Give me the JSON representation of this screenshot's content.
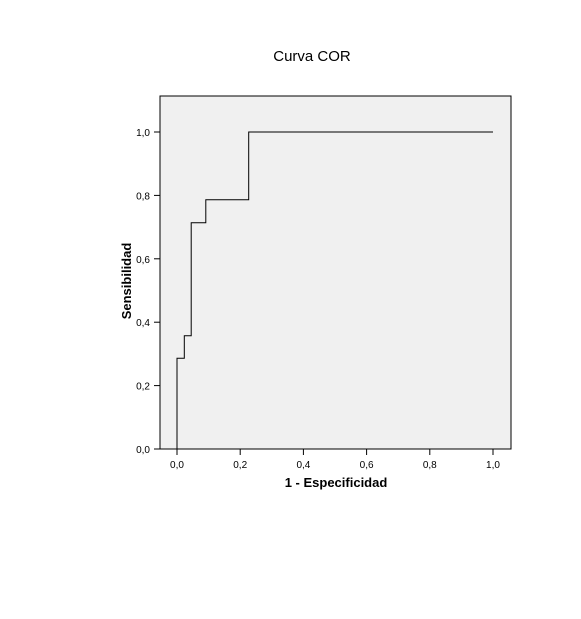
{
  "chart_data": {
    "type": "line",
    "title": "Curva COR",
    "xlabel": "1 - Especificidad",
    "ylabel": "Sensibilidad",
    "xlim": [
      0,
      1
    ],
    "ylim": [
      0,
      1
    ],
    "x_ticks": [
      "0,0",
      "0,2",
      "0,4",
      "0,6",
      "0,8",
      "1,0"
    ],
    "y_ticks": [
      "0,0",
      "0,2",
      "0,4",
      "0,6",
      "0,8",
      "1,0"
    ],
    "grid": false,
    "series": [
      {
        "step": true,
        "points": [
          [
            0.0,
            0.0
          ],
          [
            0.0,
            0.286
          ],
          [
            0.023,
            0.286
          ],
          [
            0.023,
            0.357
          ],
          [
            0.045,
            0.357
          ],
          [
            0.045,
            0.714
          ],
          [
            0.091,
            0.714
          ],
          [
            0.091,
            0.786
          ],
          [
            0.227,
            0.786
          ],
          [
            0.227,
            1.0
          ],
          [
            1.0,
            1.0
          ]
        ]
      }
    ],
    "colors": {
      "plot_background": "#f0f0f0",
      "line": "#000000",
      "frame": "#000000"
    }
  }
}
